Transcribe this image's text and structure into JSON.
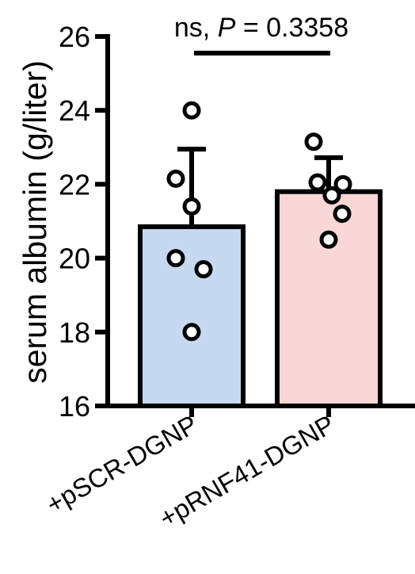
{
  "chart_data": {
    "type": "bar",
    "ylabel": "serum albumin (g/liter)",
    "ylim": [
      16,
      26
    ],
    "yticks": [
      16,
      18,
      20,
      22,
      24,
      26
    ],
    "categories": [
      "+pSCR-DGNP",
      "+pRNF41-DGNP"
    ],
    "bar_colors": [
      "#c6d9f1",
      "#fad7d7"
    ],
    "means": [
      20.85,
      21.8
    ],
    "sd_upper": [
      22.95,
      22.72
    ],
    "points": [
      [
        24.0,
        22.15,
        21.4,
        20.0,
        19.7,
        18.0
      ],
      [
        23.15,
        22.0,
        22.05,
        21.7,
        21.2,
        20.5
      ]
    ],
    "annotation": {
      "prefix": "ns, ",
      "p_symbol": "P",
      "suffix": " = 0.3358"
    }
  }
}
